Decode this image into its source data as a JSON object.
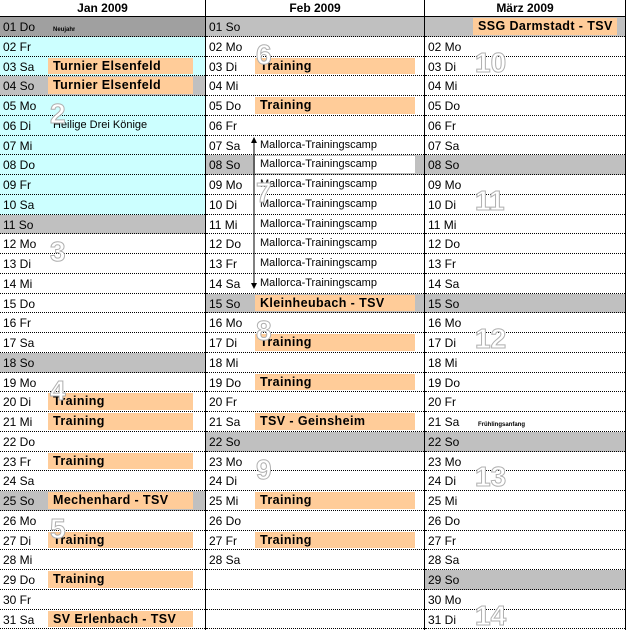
{
  "colors": {
    "event": "#ffcc99",
    "weekend": "#c0c0c0",
    "holidayBlock": "#ccffff",
    "newYear": "#a0a0a0"
  },
  "months": [
    {
      "title": "Jan 2009",
      "days": [
        {
          "label": "01 Do",
          "event": "Neujahr",
          "style": "tiny",
          "bg": "dark"
        },
        {
          "label": "02 Fr",
          "bg": "cyan"
        },
        {
          "label": "03 Sa",
          "event": "Turnier Elsenfeld",
          "style": "bold",
          "bg": "cyan"
        },
        {
          "label": "04 So",
          "event": "Turnier Elsenfeld",
          "style": "bold",
          "bg": "we"
        },
        {
          "label": "05 Mo",
          "bg": "cyan"
        },
        {
          "label": "06 Di",
          "event": "Heilige Drei Könige",
          "style": "note",
          "bg": "cyan"
        },
        {
          "label": "07 Mi",
          "bg": "cyan"
        },
        {
          "label": "08 Do",
          "bg": "cyan"
        },
        {
          "label": "09 Fr",
          "bg": "cyan"
        },
        {
          "label": "10 Sa",
          "bg": "cyan"
        },
        {
          "label": "11 So",
          "bg": "we"
        },
        {
          "label": "12 Mo"
        },
        {
          "label": "13 Di"
        },
        {
          "label": "14 Mi"
        },
        {
          "label": "15 Do"
        },
        {
          "label": "16 Fr"
        },
        {
          "label": "17 Sa"
        },
        {
          "label": "18 So",
          "bg": "we"
        },
        {
          "label": "19 Mo"
        },
        {
          "label": "20 Di",
          "event": "Training",
          "style": "bold"
        },
        {
          "label": "21 Mi",
          "event": "Training",
          "style": "bold"
        },
        {
          "label": "22 Do"
        },
        {
          "label": "23 Fr",
          "event": "Training",
          "style": "bold"
        },
        {
          "label": "24 Sa"
        },
        {
          "label": "25 So",
          "event": "Mechenhard - TSV",
          "style": "bold",
          "bg": "we"
        },
        {
          "label": "26 Mo"
        },
        {
          "label": "27 Di",
          "event": "Training",
          "style": "bold"
        },
        {
          "label": "28 Mi"
        },
        {
          "label": "29 Do",
          "event": "Training",
          "style": "bold"
        },
        {
          "label": "30 Fr"
        },
        {
          "label": "31 Sa",
          "event": "SV Erlenbach - TSV",
          "style": "bold"
        }
      ],
      "weeks": [
        {
          "n": "2",
          "row": 4
        },
        {
          "n": "3",
          "row": 11
        },
        {
          "n": "4",
          "row": 18
        },
        {
          "n": "5",
          "row": 25
        }
      ]
    },
    {
      "title": "Feb 2009",
      "days": [
        {
          "label": "01 So",
          "bg": "we"
        },
        {
          "label": "02 Mo"
        },
        {
          "label": "03 Di",
          "event": "Training",
          "style": "bold"
        },
        {
          "label": "04 Mi"
        },
        {
          "label": "05 Do",
          "event": "Training",
          "style": "bold"
        },
        {
          "label": "06 Fr"
        },
        {
          "label": "07 Sa",
          "event": "Mallorca-Trainingscamp",
          "style": "plain"
        },
        {
          "label": "08 So",
          "event": "Mallorca-Trainingscamp",
          "style": "plain",
          "bg": "we"
        },
        {
          "label": "09 Mo",
          "event": "Mallorca-Trainingscamp",
          "style": "plain"
        },
        {
          "label": "10 Di",
          "event": "Mallorca-Trainingscamp",
          "style": "plain"
        },
        {
          "label": "11 Mi",
          "event": "Mallorca-Trainingscamp",
          "style": "plain"
        },
        {
          "label": "12 Do",
          "event": "Mallorca-Trainingscamp",
          "style": "plain"
        },
        {
          "label": "13 Fr",
          "event": "Mallorca-Trainingscamp",
          "style": "plain"
        },
        {
          "label": "14 Sa",
          "event": "Mallorca-Trainingscamp",
          "style": "plain"
        },
        {
          "label": "15 So",
          "event": "Kleinheubach - TSV",
          "style": "bold",
          "bg": "we"
        },
        {
          "label": "16 Mo"
        },
        {
          "label": "17 Di",
          "event": "Training",
          "style": "bold"
        },
        {
          "label": "18 Mi"
        },
        {
          "label": "19 Do",
          "event": "Training",
          "style": "bold"
        },
        {
          "label": "20 Fr"
        },
        {
          "label": "21 Sa",
          "event": "TSV - Geinsheim",
          "style": "bold"
        },
        {
          "label": "22 So",
          "bg": "we"
        },
        {
          "label": "23 Mo"
        },
        {
          "label": "24 Di"
        },
        {
          "label": "25 Mi",
          "event": "Training",
          "style": "bold"
        },
        {
          "label": "26 Do"
        },
        {
          "label": "27 Fr",
          "event": "Training",
          "style": "bold"
        },
        {
          "label": "28 Sa"
        },
        {
          "label": ""
        },
        {
          "label": ""
        },
        {
          "label": ""
        }
      ],
      "weeks": [
        {
          "n": "6",
          "row": 1
        },
        {
          "n": "7",
          "row": 8
        },
        {
          "n": "8",
          "row": 15
        },
        {
          "n": "9",
          "row": 22
        }
      ]
    },
    {
      "title": "März 2009",
      "days": [
        {
          "label": "",
          "event": "SSG Darmstadt - TSV",
          "style": "bold",
          "bg": "we"
        },
        {
          "label": "02 Mo"
        },
        {
          "label": "03 Di"
        },
        {
          "label": "04 Mi"
        },
        {
          "label": "05 Do"
        },
        {
          "label": "06 Fr"
        },
        {
          "label": "07 Sa"
        },
        {
          "label": "08 So",
          "bg": "we"
        },
        {
          "label": "09 Mo"
        },
        {
          "label": "10 Di"
        },
        {
          "label": "11 Mi"
        },
        {
          "label": "12 Do"
        },
        {
          "label": "13 Fr"
        },
        {
          "label": "14 Sa"
        },
        {
          "label": "15 So",
          "bg": "we"
        },
        {
          "label": "16 Mo"
        },
        {
          "label": "17 Di"
        },
        {
          "label": "18 Mi"
        },
        {
          "label": "19 Do"
        },
        {
          "label": "20 Fr"
        },
        {
          "label": "21 Sa",
          "event": "Frühlingsanfang",
          "style": "tiny"
        },
        {
          "label": "22 So",
          "bg": "we"
        },
        {
          "label": "23 Mo"
        },
        {
          "label": "24 Di"
        },
        {
          "label": "25 Mi"
        },
        {
          "label": "26 Do"
        },
        {
          "label": "27 Fr"
        },
        {
          "label": "28 Sa"
        },
        {
          "label": "29 So",
          "bg": "we"
        },
        {
          "label": "30 Mo"
        },
        {
          "label": "31 Di"
        }
      ],
      "weeks": [
        {
          "n": "10",
          "row": 1.4
        },
        {
          "n": "11",
          "row": 8.4
        },
        {
          "n": "12",
          "row": 15.4
        },
        {
          "n": "13",
          "row": 22.4
        },
        {
          "n": "14",
          "row": 29.4
        }
      ]
    }
  ]
}
